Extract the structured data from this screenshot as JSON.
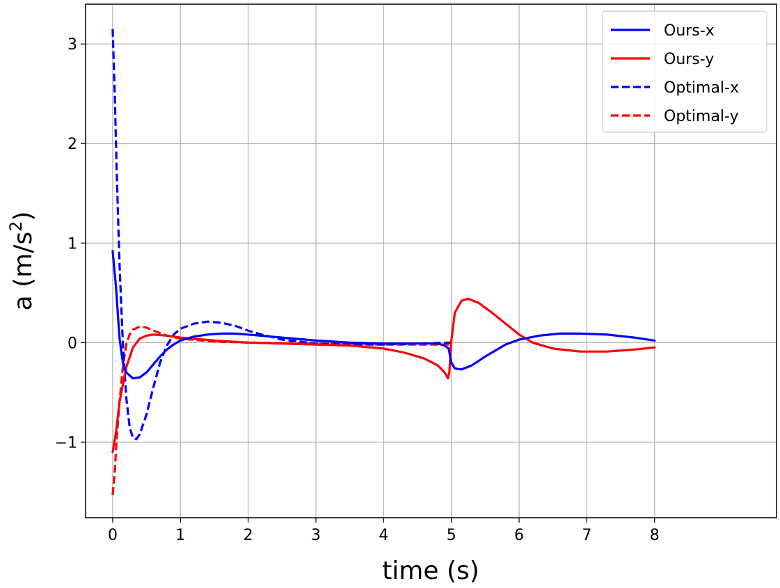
{
  "chart_data": {
    "type": "line",
    "title": "",
    "xlabel": "time (s)",
    "ylabel": {
      "main": "a (m/s",
      "sup": "2",
      "close": ")"
    },
    "xlim": [
      -0.4,
      9.8
    ],
    "ylim": [
      -1.76,
      3.4
    ],
    "xticks": [
      0,
      1,
      2,
      3,
      4,
      5,
      6,
      7,
      8
    ],
    "xtick_labels": [
      "0",
      "1",
      "2",
      "3",
      "4",
      "5",
      "6",
      "7",
      "8"
    ],
    "yticks": [
      -1,
      0,
      1,
      2,
      3
    ],
    "ytick_labels": [
      "−1",
      "0",
      "1",
      "2",
      "3"
    ],
    "grid": true,
    "legend_position": "top-right",
    "series": [
      {
        "name": "Ours-x",
        "color": "#0000ff",
        "dash": "solid",
        "points": [
          [
            0,
            0.92
          ],
          [
            0.05,
            0.55
          ],
          [
            0.1,
            0.05
          ],
          [
            0.15,
            -0.2
          ],
          [
            0.2,
            -0.3
          ],
          [
            0.3,
            -0.36
          ],
          [
            0.4,
            -0.35
          ],
          [
            0.5,
            -0.3
          ],
          [
            0.6,
            -0.22
          ],
          [
            0.7,
            -0.14
          ],
          [
            0.8,
            -0.07
          ],
          [
            0.9,
            -0.02
          ],
          [
            1.0,
            0.02
          ],
          [
            1.2,
            0.06
          ],
          [
            1.4,
            0.08
          ],
          [
            1.6,
            0.09
          ],
          [
            1.8,
            0.09
          ],
          [
            2.0,
            0.08
          ],
          [
            2.5,
            0.05
          ],
          [
            3.0,
            0.02
          ],
          [
            3.5,
            0.0
          ],
          [
            4.0,
            -0.01
          ],
          [
            4.5,
            -0.01
          ],
          [
            4.8,
            -0.01
          ],
          [
            4.9,
            -0.03
          ],
          [
            4.96,
            -0.06
          ],
          [
            5.0,
            -0.2
          ],
          [
            5.05,
            -0.26
          ],
          [
            5.15,
            -0.27
          ],
          [
            5.3,
            -0.23
          ],
          [
            5.5,
            -0.14
          ],
          [
            5.8,
            -0.02
          ],
          [
            6.0,
            0.03
          ],
          [
            6.3,
            0.07
          ],
          [
            6.6,
            0.09
          ],
          [
            6.9,
            0.09
          ],
          [
            7.3,
            0.08
          ],
          [
            7.7,
            0.05
          ],
          [
            8.0,
            0.02
          ]
        ]
      },
      {
        "name": "Ours-y",
        "color": "#ff0000",
        "dash": "solid",
        "points": [
          [
            0,
            -1.1
          ],
          [
            0.05,
            -0.9
          ],
          [
            0.1,
            -0.6
          ],
          [
            0.2,
            -0.25
          ],
          [
            0.3,
            -0.05
          ],
          [
            0.4,
            0.04
          ],
          [
            0.5,
            0.07
          ],
          [
            0.6,
            0.08
          ],
          [
            0.8,
            0.07
          ],
          [
            1.0,
            0.05
          ],
          [
            1.5,
            0.02
          ],
          [
            2.0,
            0.0
          ],
          [
            3.0,
            -0.02
          ],
          [
            3.5,
            -0.03
          ],
          [
            4.0,
            -0.06
          ],
          [
            4.3,
            -0.1
          ],
          [
            4.6,
            -0.16
          ],
          [
            4.8,
            -0.23
          ],
          [
            4.9,
            -0.3
          ],
          [
            4.95,
            -0.36
          ],
          [
            4.97,
            -0.3
          ],
          [
            5.0,
            0.02
          ],
          [
            5.05,
            0.3
          ],
          [
            5.15,
            0.42
          ],
          [
            5.25,
            0.44
          ],
          [
            5.4,
            0.4
          ],
          [
            5.6,
            0.3
          ],
          [
            5.8,
            0.19
          ],
          [
            6.0,
            0.08
          ],
          [
            6.2,
            0.0
          ],
          [
            6.5,
            -0.06
          ],
          [
            6.9,
            -0.09
          ],
          [
            7.3,
            -0.09
          ],
          [
            7.7,
            -0.07
          ],
          [
            8.0,
            -0.05
          ]
        ]
      },
      {
        "name": "Optimal-x",
        "color": "#0000ff",
        "dash": "dashed",
        "points": [
          [
            0,
            3.15
          ],
          [
            0.03,
            2.5
          ],
          [
            0.06,
            1.7
          ],
          [
            0.1,
            0.8
          ],
          [
            0.15,
            0.0
          ],
          [
            0.2,
            -0.55
          ],
          [
            0.25,
            -0.85
          ],
          [
            0.3,
            -0.96
          ],
          [
            0.35,
            -0.97
          ],
          [
            0.4,
            -0.92
          ],
          [
            0.5,
            -0.72
          ],
          [
            0.6,
            -0.45
          ],
          [
            0.7,
            -0.2
          ],
          [
            0.8,
            -0.03
          ],
          [
            0.9,
            0.08
          ],
          [
            1.0,
            0.14
          ],
          [
            1.2,
            0.19
          ],
          [
            1.4,
            0.21
          ],
          [
            1.6,
            0.2
          ],
          [
            1.8,
            0.17
          ],
          [
            2.0,
            0.12
          ],
          [
            2.2,
            0.08
          ],
          [
            2.5,
            0.03
          ],
          [
            3.0,
            -0.01
          ],
          [
            3.5,
            -0.02
          ],
          [
            4.0,
            -0.02
          ],
          [
            4.5,
            -0.01
          ],
          [
            5.0,
            0.0
          ]
        ]
      },
      {
        "name": "Optimal-y",
        "color": "#ff0000",
        "dash": "dashed",
        "points": [
          [
            0,
            -1.53
          ],
          [
            0.03,
            -1.3
          ],
          [
            0.06,
            -0.95
          ],
          [
            0.1,
            -0.6
          ],
          [
            0.15,
            -0.25
          ],
          [
            0.2,
            -0.02
          ],
          [
            0.25,
            0.08
          ],
          [
            0.3,
            0.13
          ],
          [
            0.4,
            0.16
          ],
          [
            0.5,
            0.15
          ],
          [
            0.6,
            0.12
          ],
          [
            0.8,
            0.07
          ],
          [
            1.0,
            0.04
          ],
          [
            1.5,
            0.01
          ],
          [
            2.0,
            0.0
          ],
          [
            3.0,
            -0.01
          ],
          [
            4.0,
            -0.02
          ],
          [
            5.0,
            -0.02
          ]
        ]
      }
    ]
  }
}
